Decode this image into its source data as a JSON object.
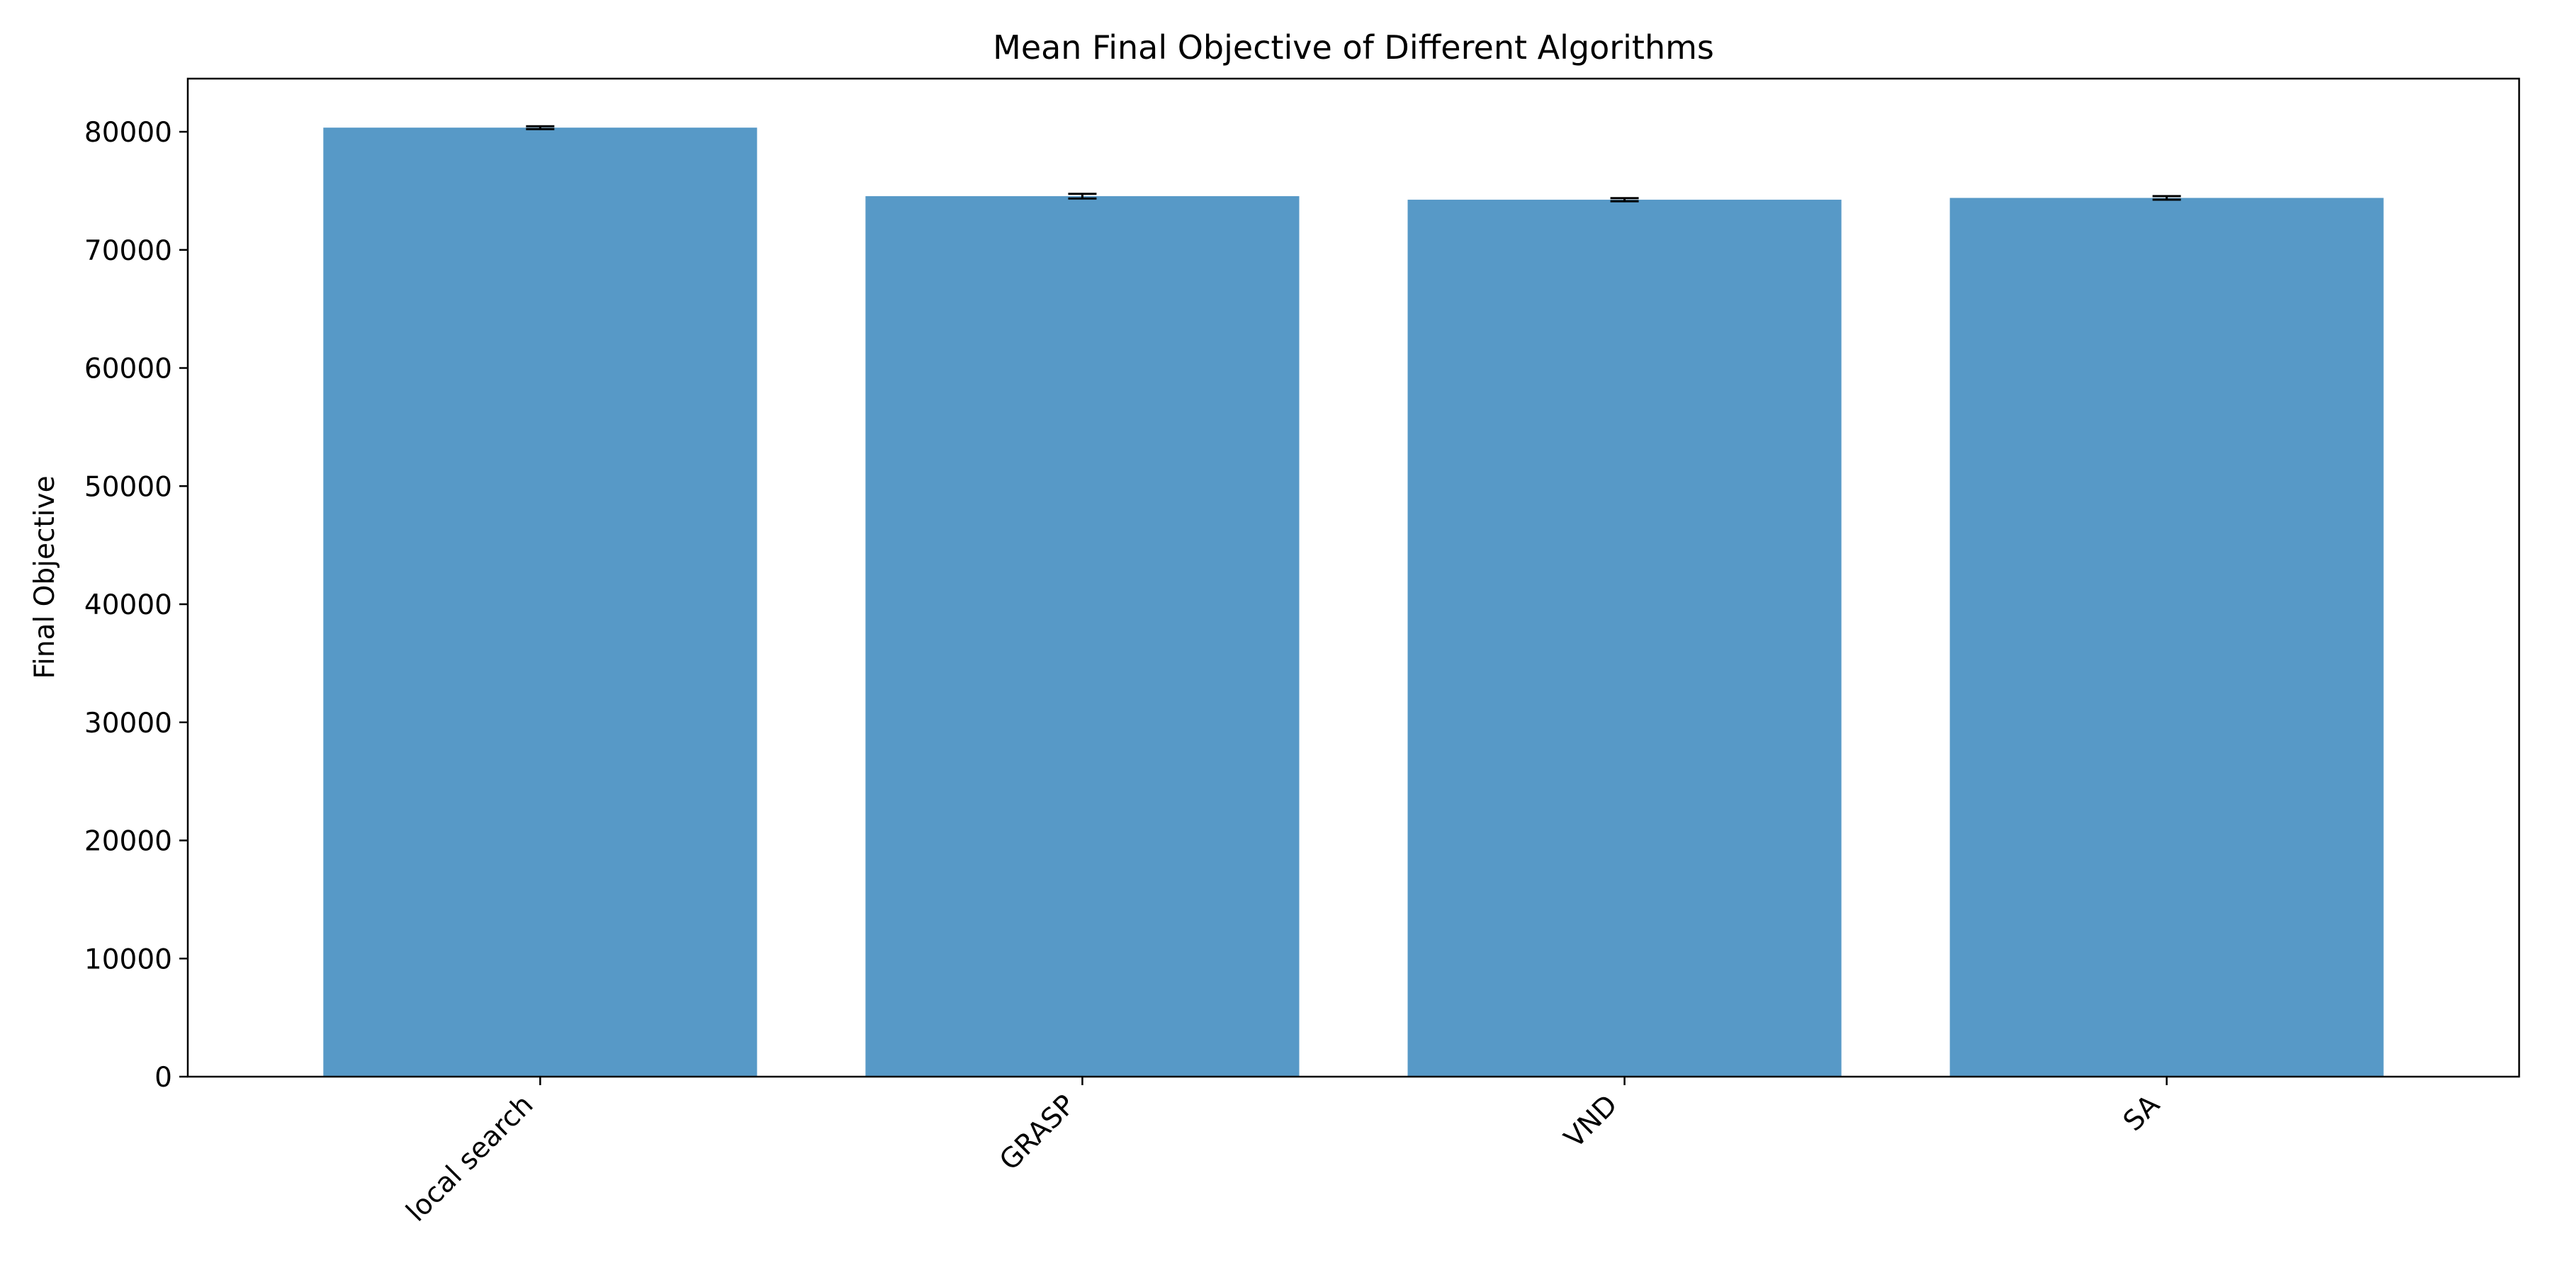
{
  "chart_data": {
    "type": "bar",
    "title": "Mean Final Objective of Different Algorithms",
    "xlabel": "",
    "ylabel": "Final Objective",
    "categories": [
      "local search",
      "GRASP",
      "VND",
      "SA"
    ],
    "values": [
      80350,
      74550,
      74250,
      74400
    ],
    "error": [
      120,
      200,
      130,
      150
    ],
    "ylim": [
      0,
      84500
    ],
    "yticks": [
      0,
      10000,
      20000,
      30000,
      40000,
      50000,
      60000,
      70000,
      80000
    ],
    "grid": false,
    "legend": "none",
    "bar_color": "#5799c7",
    "error_color": "#000000"
  }
}
